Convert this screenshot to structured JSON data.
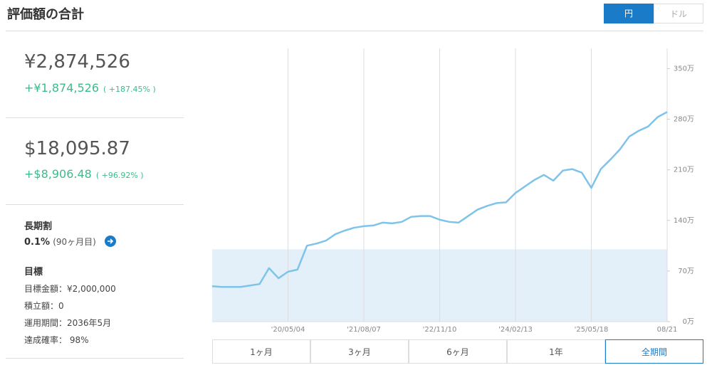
{
  "header": {
    "title": "評価額の合計",
    "currency_toggle": [
      "円",
      "ドル"
    ]
  },
  "summary": {
    "jpy": {
      "total": "¥2,874,526",
      "gain": "+¥1,874,526",
      "gain_pct": "( +187.45% )"
    },
    "usd": {
      "total": "$18,095.87",
      "gain": "+$8,906.48",
      "gain_pct": "( +96.92% )"
    }
  },
  "discount": {
    "title": "長期割",
    "rate": "0.1%",
    "months": "(90ヶ月目)"
  },
  "goal": {
    "title": "目標",
    "lines": [
      "目標金額：¥2,000,000",
      "積立額：0",
      "運用期間：2036年5月",
      "達成確率： 98%"
    ]
  },
  "period_buttons": [
    "1ヶ月",
    "3ヶ月",
    "6ヶ月",
    "1年",
    "全期間"
  ],
  "chart_data": {
    "type": "line",
    "categories": [
      null,
      null,
      null,
      null,
      null,
      null,
      null,
      null,
      "'20/05/04",
      null,
      null,
      null,
      null,
      null,
      null,
      null,
      "'21/08/07",
      null,
      null,
      null,
      null,
      null,
      null,
      null,
      "'22/11/10",
      null,
      null,
      null,
      null,
      null,
      null,
      null,
      "'24/02/13",
      null,
      null,
      null,
      null,
      null,
      null,
      null,
      "'25/05/18",
      null,
      null,
      null,
      null,
      null,
      null,
      null,
      "08/21"
    ],
    "values": [
      49,
      48,
      48,
      48,
      50,
      52,
      74,
      60,
      69,
      72,
      105,
      108,
      112,
      121,
      126,
      130,
      132,
      133,
      137,
      136,
      138,
      145,
      146,
      146,
      141,
      138,
      137,
      146,
      155,
      160,
      164,
      165,
      178,
      187,
      196,
      203,
      195,
      209,
      211,
      206,
      185,
      211,
      224,
      238,
      256,
      264,
      270,
      283,
      290
    ],
    "color": "#7ec3ea",
    "reference_area": {
      "value": 100,
      "color": "#e3f0f9"
    },
    "ylim": [
      0,
      378
    ],
    "yticks": [
      {
        "value": 0,
        "label": "0万"
      },
      {
        "value": 70,
        "label": "70万"
      },
      {
        "value": 140,
        "label": "140万"
      },
      {
        "value": 210,
        "label": "210万"
      },
      {
        "value": 280,
        "label": "280万"
      },
      {
        "value": 350,
        "label": "350万"
      }
    ],
    "grid": true
  }
}
